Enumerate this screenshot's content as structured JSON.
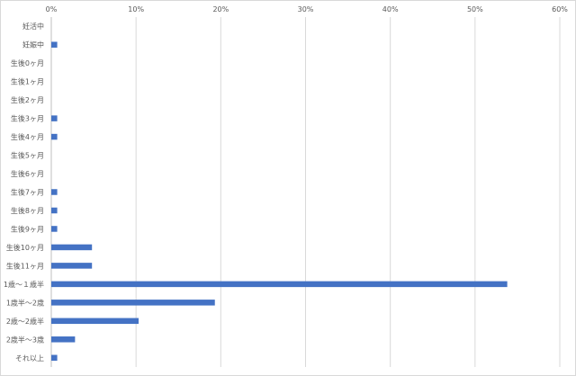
{
  "chart_data": {
    "type": "bar",
    "orientation": "horizontal",
    "title": "",
    "xlabel": "",
    "ylabel": "",
    "xlim": [
      0,
      60
    ],
    "x_ticks": [
      "0%",
      "10%",
      "20%",
      "30%",
      "40%",
      "50%",
      "60%"
    ],
    "value_unit": "%",
    "x_axis_position": "top",
    "grid": true,
    "legend": "none",
    "bar_color": "#4472c4",
    "categories": [
      "妊活中",
      "妊娠中",
      "生後0ヶ月",
      "生後1ヶ月",
      "生後2ヶ月",
      "生後3ヶ月",
      "生後4ヶ月",
      "生後5ヶ月",
      "生後6ヶ月",
      "生後7ヶ月",
      "生後8ヶ月",
      "生後9ヶ月",
      "生後10ヶ月",
      "生後11ヶ月",
      "1歳～１歳半",
      "1歳半～2歳",
      "2歳～2歳半",
      "2歳半～3歳",
      "それ以上"
    ],
    "values": [
      0,
      0.7,
      0,
      0,
      0,
      0.7,
      0.7,
      0,
      0,
      0.7,
      0.7,
      0.7,
      4.8,
      4.8,
      53.8,
      19.3,
      10.3,
      2.8,
      0.7
    ]
  }
}
